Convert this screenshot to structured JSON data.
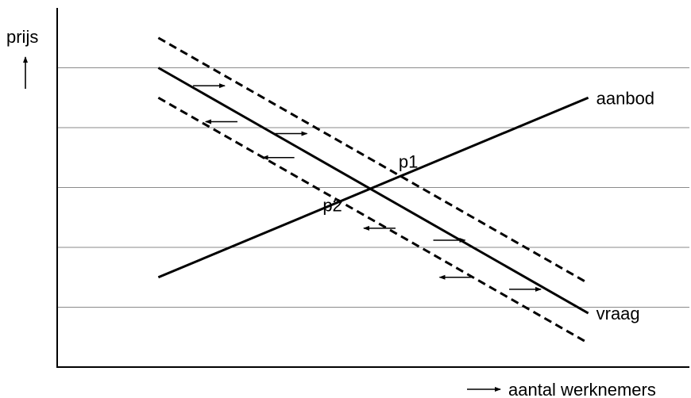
{
  "chart_data": {
    "type": "line",
    "title": "",
    "ylabel": "prijs",
    "xlabel": "aantal werknemers",
    "xlim": [
      0,
      10
    ],
    "ylim": [
      0,
      6
    ],
    "grid": true,
    "gridlines_y": [
      1,
      2,
      3,
      4,
      5
    ],
    "series": [
      {
        "name": "aanbod",
        "style": "solid",
        "x": [
          1.6,
          8.4
        ],
        "y": [
          1.5,
          4.5
        ]
      },
      {
        "name": "vraag",
        "style": "solid",
        "x": [
          1.6,
          8.4
        ],
        "y": [
          5.0,
          0.9
        ]
      },
      {
        "name": "",
        "style": "dashed",
        "x": [
          1.6,
          8.4
        ],
        "y": [
          5.5,
          1.4
        ]
      },
      {
        "name": "",
        "style": "dashed",
        "x": [
          1.6,
          8.4
        ],
        "y": [
          4.5,
          0.4
        ]
      }
    ],
    "annotations": [
      {
        "text": "p1",
        "x": 5.4,
        "y": 3.33
      },
      {
        "text": "p2",
        "x": 4.2,
        "y": 2.6
      }
    ],
    "arrows": [
      {
        "x": 2.4,
        "y": 4.7,
        "dir": "right"
      },
      {
        "x": 2.6,
        "y": 4.1,
        "dir": "left"
      },
      {
        "x": 3.7,
        "y": 3.9,
        "dir": "right"
      },
      {
        "x": 3.5,
        "y": 3.5,
        "dir": "left"
      },
      {
        "x": 5.1,
        "y": 2.32,
        "dir": "left"
      },
      {
        "x": 6.2,
        "y": 2.12,
        "dir": "right"
      },
      {
        "x": 6.3,
        "y": 1.5,
        "dir": "left"
      },
      {
        "x": 7.4,
        "y": 1.3,
        "dir": "right"
      }
    ]
  }
}
